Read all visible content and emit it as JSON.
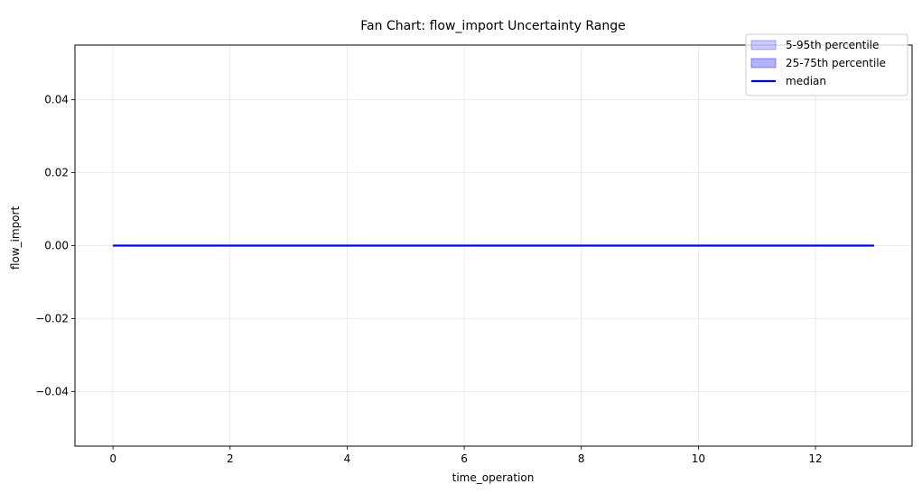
{
  "chart_data": {
    "type": "area",
    "title": "Fan Chart: flow_import Uncertainty Range",
    "xlabel": "time_operation",
    "ylabel": "flow_import",
    "xlim": [
      -0.65,
      13.65
    ],
    "ylim": [
      -0.055,
      0.055
    ],
    "x_ticks": [
      0,
      2,
      4,
      6,
      8,
      10,
      12
    ],
    "y_ticks": [
      -0.04,
      -0.02,
      0.0,
      0.02,
      0.04
    ],
    "x_tick_labels": [
      "0",
      "2",
      "4",
      "6",
      "8",
      "10",
      "12"
    ],
    "y_tick_labels": [
      "−0.04",
      "−0.02",
      "0.00",
      "0.02",
      "0.04"
    ],
    "grid": true,
    "legend_position": "top-right",
    "x": [
      0,
      1,
      2,
      3,
      4,
      5,
      6,
      7,
      8,
      9,
      10,
      11,
      12,
      13
    ],
    "series": [
      {
        "name": "5-95th percentile",
        "kind": "band",
        "color": "#0000ff",
        "opacity": 0.2,
        "lower": [
          0,
          0,
          0,
          0,
          0,
          0,
          0,
          0,
          0,
          0,
          0,
          0,
          0,
          0
        ],
        "upper": [
          0,
          0,
          0,
          0,
          0,
          0,
          0,
          0,
          0,
          0,
          0,
          0,
          0,
          0
        ]
      },
      {
        "name": "25-75th percentile",
        "kind": "band",
        "color": "#0000ff",
        "opacity": 0.3,
        "lower": [
          0,
          0,
          0,
          0,
          0,
          0,
          0,
          0,
          0,
          0,
          0,
          0,
          0,
          0
        ],
        "upper": [
          0,
          0,
          0,
          0,
          0,
          0,
          0,
          0,
          0,
          0,
          0,
          0,
          0,
          0
        ]
      },
      {
        "name": "median",
        "kind": "line",
        "color": "#0000ff",
        "values": [
          0,
          0,
          0,
          0,
          0,
          0,
          0,
          0,
          0,
          0,
          0,
          0,
          0,
          0
        ]
      }
    ]
  }
}
